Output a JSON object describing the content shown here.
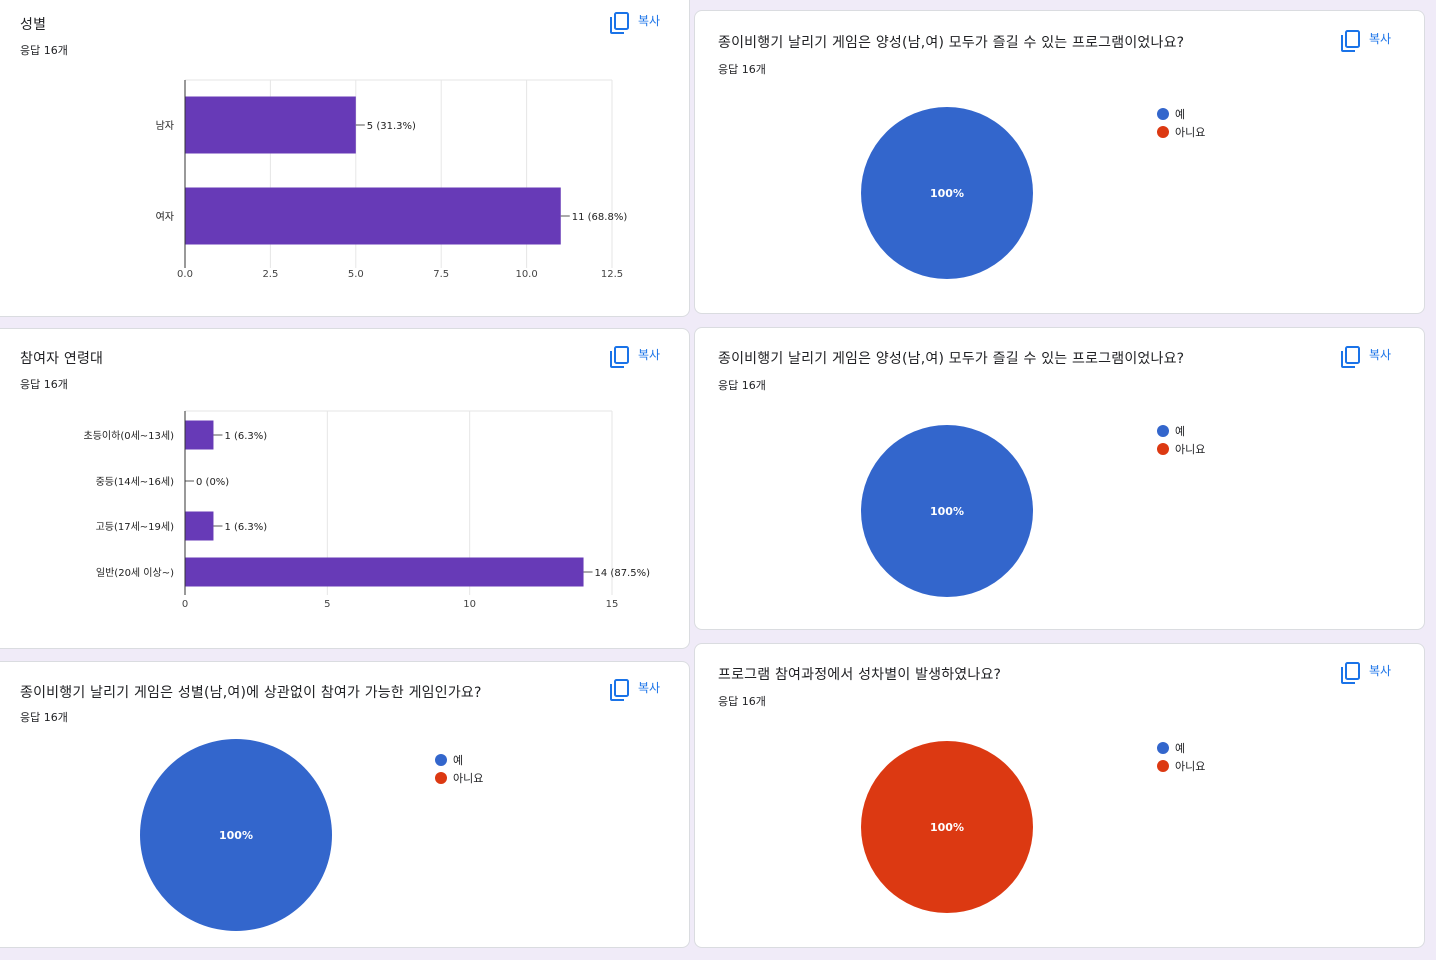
{
  "copy_label": "복사",
  "legend": {
    "yes": "예",
    "no": "아니요"
  },
  "colors": {
    "bar": "#673ab7",
    "yes": "#3366cc",
    "no": "#dc3912",
    "grid": "#e6e6e6",
    "axis": "#333333"
  },
  "cards": {
    "gender": {
      "title": "성별",
      "count": "응답 16개"
    },
    "age": {
      "title": "참여자 연령대",
      "count": "응답 16개"
    },
    "q3": {
      "title": "종이비행기 날리기 게임은 성별(남,여)에 상관없이 참여가 가능한 게임인가요?",
      "count": "응답 16개"
    },
    "q1": {
      "title": "종이비행기 날리기 게임은 양성(남,여) 모두가 즐길 수 있는 프로그램이었나요?",
      "count": "응답 16개"
    },
    "q2": {
      "title": "종이비행기 날리기 게임은 양성(남,여) 모두가 즐길 수 있는 프로그램이었나요?",
      "count": "응답 16개"
    },
    "q4": {
      "title": "프로그램 참여과정에서 성차별이 발생하였나요?",
      "count": "응답 16개"
    }
  },
  "chart_data": [
    {
      "id": "gender",
      "type": "bar",
      "orientation": "horizontal",
      "title": "성별",
      "categories": [
        "남자",
        "여자"
      ],
      "values": [
        5,
        11
      ],
      "labels": [
        "5 (31.3%)",
        "11 (68.8%)"
      ],
      "xlim": [
        0,
        12.5
      ],
      "ticks": [
        "0.0",
        "2.5",
        "5.0",
        "7.5",
        "10.0",
        "12.5"
      ]
    },
    {
      "id": "age",
      "type": "bar",
      "orientation": "horizontal",
      "title": "참여자 연령대",
      "categories": [
        "초등이하(0세~13세)",
        "중등(14세~16세)",
        "고등(17세~19세)",
        "일반(20세 이상~)"
      ],
      "values": [
        1,
        0,
        1,
        14
      ],
      "labels": [
        "1 (6.3%)",
        "0 (0%)",
        "1 (6.3%)",
        "14 (87.5%)"
      ],
      "xlim": [
        0,
        15
      ],
      "ticks": [
        "0",
        "5",
        "10",
        "15"
      ]
    },
    {
      "id": "q1",
      "type": "pie",
      "title": "종이비행기 날리기 게임은 양성(남,여) 모두가 즐길 수 있는 프로그램이었나요?",
      "categories": [
        "예",
        "아니요"
      ],
      "values": [
        16,
        0
      ],
      "slice_label": "100%"
    },
    {
      "id": "q2",
      "type": "pie",
      "title": "종이비행기 날리기 게임은 양성(남,여) 모두가 즐길 수 있는 프로그램이었나요?",
      "categories": [
        "예",
        "아니요"
      ],
      "values": [
        16,
        0
      ],
      "slice_label": "100%"
    },
    {
      "id": "q3",
      "type": "pie",
      "title": "종이비행기 날리기 게임은 성별(남,여)에 상관없이 참여가 가능한 게임인가요?",
      "categories": [
        "예",
        "아니요"
      ],
      "values": [
        16,
        0
      ],
      "slice_label": "100%"
    },
    {
      "id": "q4",
      "type": "pie",
      "title": "프로그램 참여과정에서 성차별이 발생하였나요?",
      "categories": [
        "예",
        "아니요"
      ],
      "values": [
        0,
        16
      ],
      "slice_label": "100%"
    }
  ]
}
